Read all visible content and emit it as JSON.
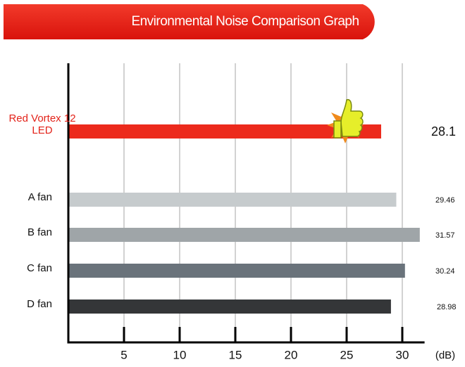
{
  "chart_data": {
    "type": "bar",
    "orientation": "horizontal",
    "title": "Environmental Noise Comparison Graph",
    "x_label": "(dB)",
    "categories": [
      "Red Vortex 12 LED",
      "A fan",
      "B fan",
      "C fan",
      "D fan"
    ],
    "values": [
      28.1,
      29.46,
      31.57,
      30.24,
      28.98
    ],
    "colors": [
      "#ec2a1c",
      "#c6cbcd",
      "#9fa5a8",
      "#6a737b",
      "#343638"
    ],
    "xlim": [
      0,
      32
    ],
    "xticks": [
      5,
      10,
      15,
      20,
      25,
      30
    ],
    "grid": true
  }
}
